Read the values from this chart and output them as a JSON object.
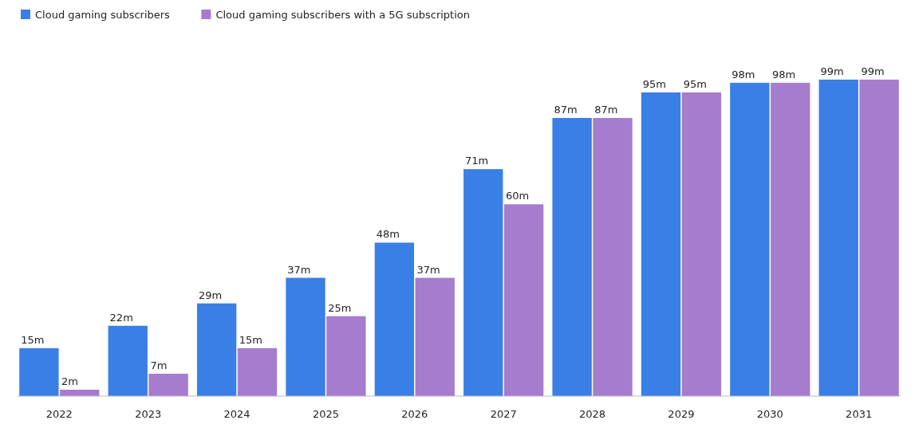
{
  "chart_data": {
    "type": "bar",
    "categories": [
      "2022",
      "2023",
      "2024",
      "2025",
      "2026",
      "2027",
      "2028",
      "2029",
      "2030",
      "2031"
    ],
    "series": [
      {
        "name": "Cloud gaming subscribers",
        "color": "#3a7fe6",
        "values": [
          15,
          22,
          29,
          37,
          48,
          71,
          87,
          95,
          98,
          99
        ],
        "value_labels": [
          "15m",
          "22m",
          "29m",
          "37m",
          "48m",
          "71m",
          "87m",
          "95m",
          "98m",
          "99m"
        ]
      },
      {
        "name": "Cloud gaming subscribers with a 5G subscription",
        "color": "#a67ccf",
        "values": [
          2,
          7,
          15,
          25,
          37,
          60,
          87,
          95,
          98,
          99
        ],
        "value_labels": [
          "2m",
          "7m",
          "15m",
          "25m",
          "37m",
          "60m",
          "87m",
          "95m",
          "98m",
          "99m"
        ]
      }
    ],
    "legend": "top left"
  }
}
